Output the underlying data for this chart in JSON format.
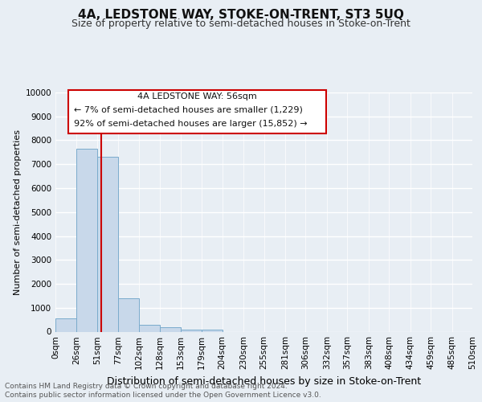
{
  "title": "4A, LEDSTONE WAY, STOKE-ON-TRENT, ST3 5UQ",
  "subtitle": "Size of property relative to semi-detached houses in Stoke-on-Trent",
  "xlabel": "Distribution of semi-detached houses by size in Stoke-on-Trent",
  "ylabel": "Number of semi-detached properties",
  "footer_line1": "Contains HM Land Registry data © Crown copyright and database right 2024.",
  "footer_line2": "Contains public sector information licensed under the Open Government Licence v3.0.",
  "annotation_title": "4A LEDSTONE WAY: 56sqm",
  "annotation_line1": "← 7% of semi-detached houses are smaller (1,229)",
  "annotation_line2": "92% of semi-detached houses are larger (15,852) →",
  "property_size_sqm": 56,
  "bin_edges": [
    0,
    26,
    51,
    77,
    102,
    128,
    153,
    179,
    204,
    230,
    255,
    281,
    306,
    332,
    357,
    383,
    408,
    434,
    459,
    485,
    510
  ],
  "bin_counts": [
    560,
    7650,
    7300,
    1400,
    300,
    175,
    100,
    75,
    0,
    0,
    0,
    0,
    0,
    0,
    0,
    0,
    0,
    0,
    0,
    0
  ],
  "bar_color": "#c8d8ea",
  "bar_edge_color": "#7aabcc",
  "highlight_line_color": "#cc0000",
  "annotation_box_color": "#cc0000",
  "ylim": [
    0,
    10000
  ],
  "yticks": [
    0,
    1000,
    2000,
    3000,
    4000,
    5000,
    6000,
    7000,
    8000,
    9000,
    10000
  ],
  "background_color": "#e8eef4",
  "plot_bg_color": "#e8eef4",
  "grid_color": "#ffffff",
  "title_fontsize": 11,
  "subtitle_fontsize": 9,
  "tick_label_fontsize": 7.5,
  "ylabel_fontsize": 8,
  "xlabel_fontsize": 9,
  "annotation_fontsize": 8,
  "footer_fontsize": 6.5
}
